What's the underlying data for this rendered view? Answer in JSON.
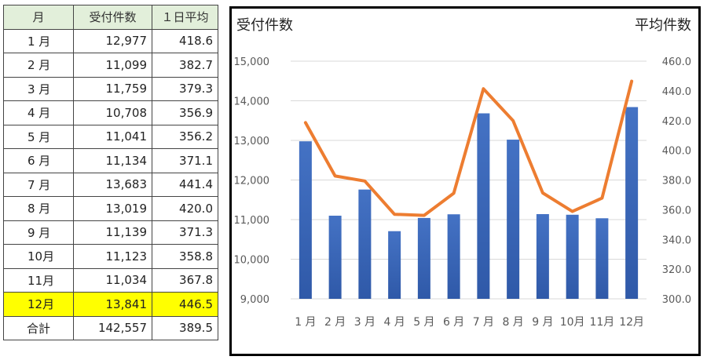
{
  "table": {
    "headers": [
      "月",
      "受付件数",
      "１日平均"
    ],
    "rows": [
      [
        "1 月",
        "12,977",
        "418.6"
      ],
      [
        "2 月",
        "11,099",
        "382.7"
      ],
      [
        "3 月",
        "11,759",
        "379.3"
      ],
      [
        "4 月",
        "10,708",
        "356.9"
      ],
      [
        "5 月",
        "11,041",
        "356.2"
      ],
      [
        "6 月",
        "11,134",
        "371.1"
      ],
      [
        "7 月",
        "13,683",
        "441.4"
      ],
      [
        "8 月",
        "13,019",
        "420.0"
      ],
      [
        "9 月",
        "11,139",
        "371.3"
      ],
      [
        "10月",
        "11,123",
        "358.8"
      ],
      [
        "11月",
        "11,034",
        "367.8"
      ],
      [
        "12月",
        "13,841",
        "446.5"
      ],
      [
        "合計",
        "142,557",
        "389.5"
      ]
    ],
    "highlight_row": "12月",
    "highlight_color": "#ffff00",
    "header_color": "#e2efda"
  },
  "chart_data": {
    "type": "bar",
    "title_left": "受付件数",
    "title_right": "平均件数",
    "categories": [
      "1 月",
      "2 月",
      "3 月",
      "4 月",
      "5 月",
      "6 月",
      "7 月",
      "8 月",
      "9 月",
      "10月",
      "11月",
      "12月"
    ],
    "series": [
      {
        "type": "bar",
        "axis": "left",
        "color": "#4472c4",
        "values": [
          12977,
          11099,
          11759,
          10708,
          11041,
          11134,
          13683,
          13019,
          11139,
          11123,
          11034,
          13841
        ]
      },
      {
        "type": "line",
        "axis": "right",
        "color": "#ed7d31",
        "values": [
          418.6,
          382.7,
          379.3,
          356.9,
          356.2,
          371.1,
          441.4,
          420.0,
          371.3,
          358.8,
          367.8,
          446.5
        ]
      }
    ],
    "y_left": {
      "min": 9000,
      "max": 15000,
      "step": 1000,
      "ticks": [
        "9,000",
        "10,000",
        "11,000",
        "12,000",
        "13,000",
        "14,000",
        "15,000"
      ]
    },
    "y_right": {
      "min": 300,
      "max": 460,
      "step": 20,
      "ticks": [
        "300.0",
        "320.0",
        "340.0",
        "360.0",
        "380.0",
        "400.0",
        "420.0",
        "440.0",
        "460.0"
      ]
    },
    "grid": true
  }
}
